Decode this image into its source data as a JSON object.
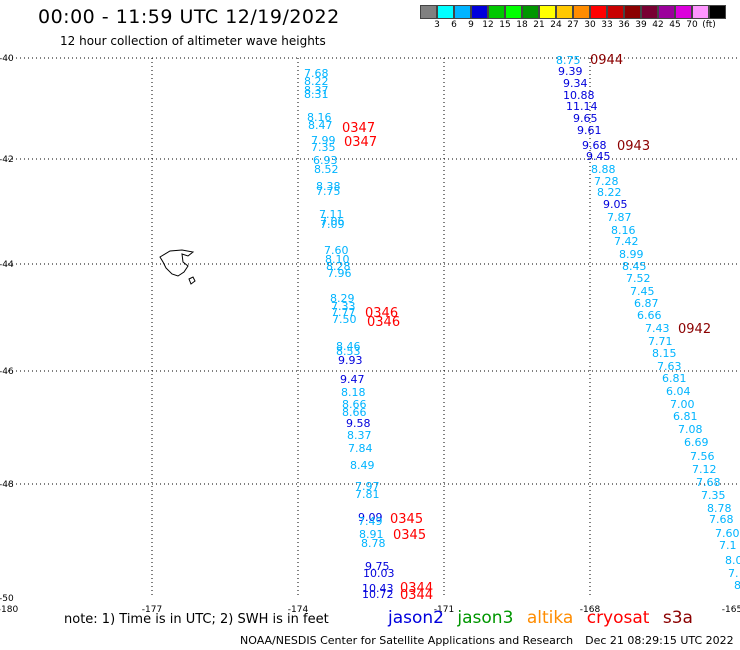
{
  "title": "00:00 - 11:59 UTC 12/19/2022",
  "subtitle": "12 hour collection of altimeter wave heights",
  "legend": {
    "colors": [
      "#808080",
      "#00ffff",
      "#00b4ff",
      "#0000dc",
      "#00c800",
      "#00ff00",
      "#009600",
      "#ffff00",
      "#ffc800",
      "#ff8c00",
      "#ff0000",
      "#c80000",
      "#8b0000",
      "#780032",
      "#9b009b",
      "#dc00dc",
      "#ff96ff",
      "#000000"
    ],
    "ticks": [
      "3",
      "6",
      "9",
      "12",
      "15",
      "18",
      "21",
      "24",
      "27",
      "30",
      "33",
      "36",
      "39",
      "42",
      "45",
      "70",
      "(ft)"
    ]
  },
  "axes": {
    "lon_labels": [
      "-180",
      "-177",
      "-174",
      "-171",
      "-168",
      "-165"
    ],
    "lat_labels": [
      "-40",
      "-42",
      "-44",
      "-46",
      "-48",
      "-50"
    ]
  },
  "colors": {
    "jason2": "#0000dc",
    "jason3": "#009600",
    "altika": "#ff8c00",
    "cryosat": "#ff0000",
    "s3a": "#8b0000"
  },
  "tracks": {
    "left": [
      "7.68",
      "8.22",
      "8.37",
      "8.31",
      "8.16",
      "8.47",
      "7.99",
      "7.35",
      "6.93",
      "8.52",
      "8.38",
      "7.75",
      "7.11",
      "7.06",
      "7.09",
      "7.60",
      "8.10",
      "8.28",
      "7.96",
      "8.29",
      "7.33",
      "7.77",
      "7.50",
      "8.46",
      "8.53",
      "9.93",
      "9.47",
      "8.18",
      "8.66",
      "8.66",
      "9.58",
      "8.37",
      "7.84",
      "8.49",
      "7.97",
      "7.81",
      "9.09",
      "7.49",
      "8.91",
      "8.78",
      "9.75",
      "10.03",
      "10.43",
      "10.72"
    ],
    "left_times": [
      "0347",
      "0347",
      "0346",
      "0346",
      "0345",
      "0345",
      "0344",
      "0344"
    ],
    "right": [
      "8.75",
      "9.39",
      "9.34",
      "10.88",
      "11.14",
      "9.65",
      "9.61",
      "9.68",
      "9.45",
      "8.88",
      "7.28",
      "8.22",
      "9.05",
      "7.87",
      "8.16",
      "7.42",
      "8.99",
      "8.45",
      "7.52",
      "7.45",
      "6.87",
      "6.66",
      "7.43",
      "7.71",
      "8.15",
      "7.63",
      "6.81",
      "6.04",
      "7.00",
      "6.81",
      "7.08",
      "6.69",
      "7.56",
      "7.12",
      "7.68",
      "7.35",
      "8.78",
      "7.68",
      "7.60",
      "7.1",
      "8.0",
      "7.",
      "8"
    ],
    "right_times": [
      "0944",
      "0943",
      "0942"
    ]
  },
  "note": "note:  1) Time is in UTC;  2) SWH is in feet",
  "satellites": {
    "jason2": "jason2",
    "jason3": "jason3",
    "altika": "altika",
    "cryosat": "cryosat",
    "s3a": "s3a"
  },
  "footer": {
    "credit": "NOAA/NESDIS Center for Satellite Applications and Research",
    "date": "Dec 21 08:29:15 UTC 2022"
  }
}
